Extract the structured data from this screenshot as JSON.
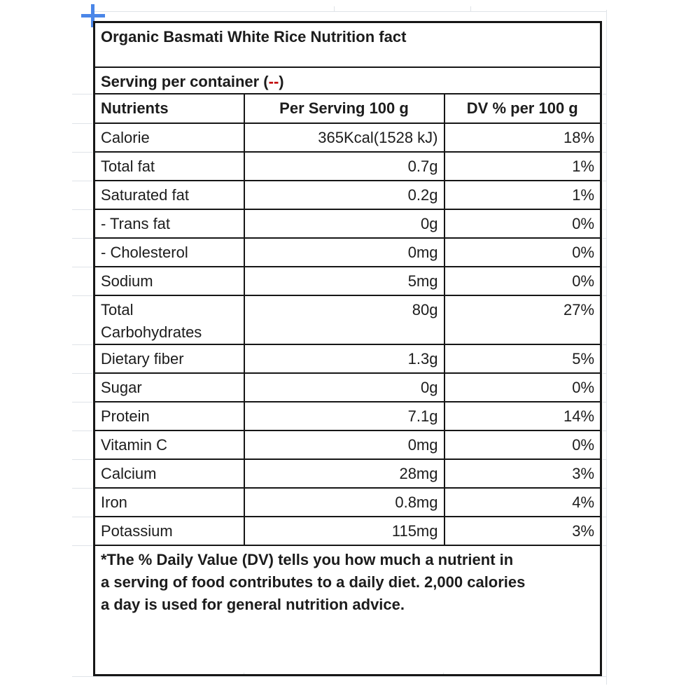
{
  "colors": {
    "border": "#161616",
    "text": "#1c1c1c",
    "accent_red": "#c00000",
    "handle_blue": "#4a86e8",
    "gridline": "#dfe3e8"
  },
  "icons": {
    "move_handle": "table-move-handle-cross"
  },
  "title_row": {
    "text": "Organic Basmati White Rice Nutrition fact"
  },
  "serving_row": {
    "prefix": "Serving per container (",
    "placeholder": "--",
    "suffix": ")"
  },
  "header_row": {
    "nutrients": "Nutrients",
    "per_serving": "Per Serving 100 g",
    "dv": "DV % per 100 g"
  },
  "rows": [
    {
      "nutrient": "Calorie",
      "value": "365Kcal(1528 kJ)",
      "dv": "18%"
    },
    {
      "nutrient": "Total fat",
      "value": "0.7g",
      "dv": "1%"
    },
    {
      "nutrient": "Saturated fat",
      "value": "0.2g",
      "dv": "1%"
    },
    {
      "nutrient": "- Trans fat",
      "value": "0g",
      "dv": "0%"
    },
    {
      "nutrient": "- Cholesterol",
      "value": "0mg",
      "dv": "0%"
    },
    {
      "nutrient": "Sodium",
      "value": "5mg",
      "dv": "0%"
    },
    {
      "nutrient": "Total Carbohydrates",
      "value": "80g",
      "dv": "27%"
    },
    {
      "nutrient": "Dietary fiber",
      "value": "1.3g",
      "dv": "5%"
    },
    {
      "nutrient": "Sugar",
      "value": "0g",
      "dv": "0%"
    },
    {
      "nutrient": "Protein",
      "value": "7.1g",
      "dv": "14%"
    },
    {
      "nutrient": "Vitamin C",
      "value": "0mg",
      "dv": "0%"
    },
    {
      "nutrient": "Calcium",
      "value": "28mg",
      "dv": "3%"
    },
    {
      "nutrient": "Iron",
      "value": "0.8mg",
      "dv": "4%"
    },
    {
      "nutrient": "Potassium",
      "value": "115mg",
      "dv": "3%"
    }
  ],
  "footnote": {
    "text": "*The % Daily Value (DV) tells you how much a nutrient in a serving of food contributes to a daily diet. 2,000 calories a day is used for general nutrition advice.",
    "lines": [
      "*The % Daily Value (DV) tells you how much a nutrient in",
      "a serving of food contributes to a daily diet. 2,000 calories",
      "a day is used for general nutrition advice."
    ]
  }
}
